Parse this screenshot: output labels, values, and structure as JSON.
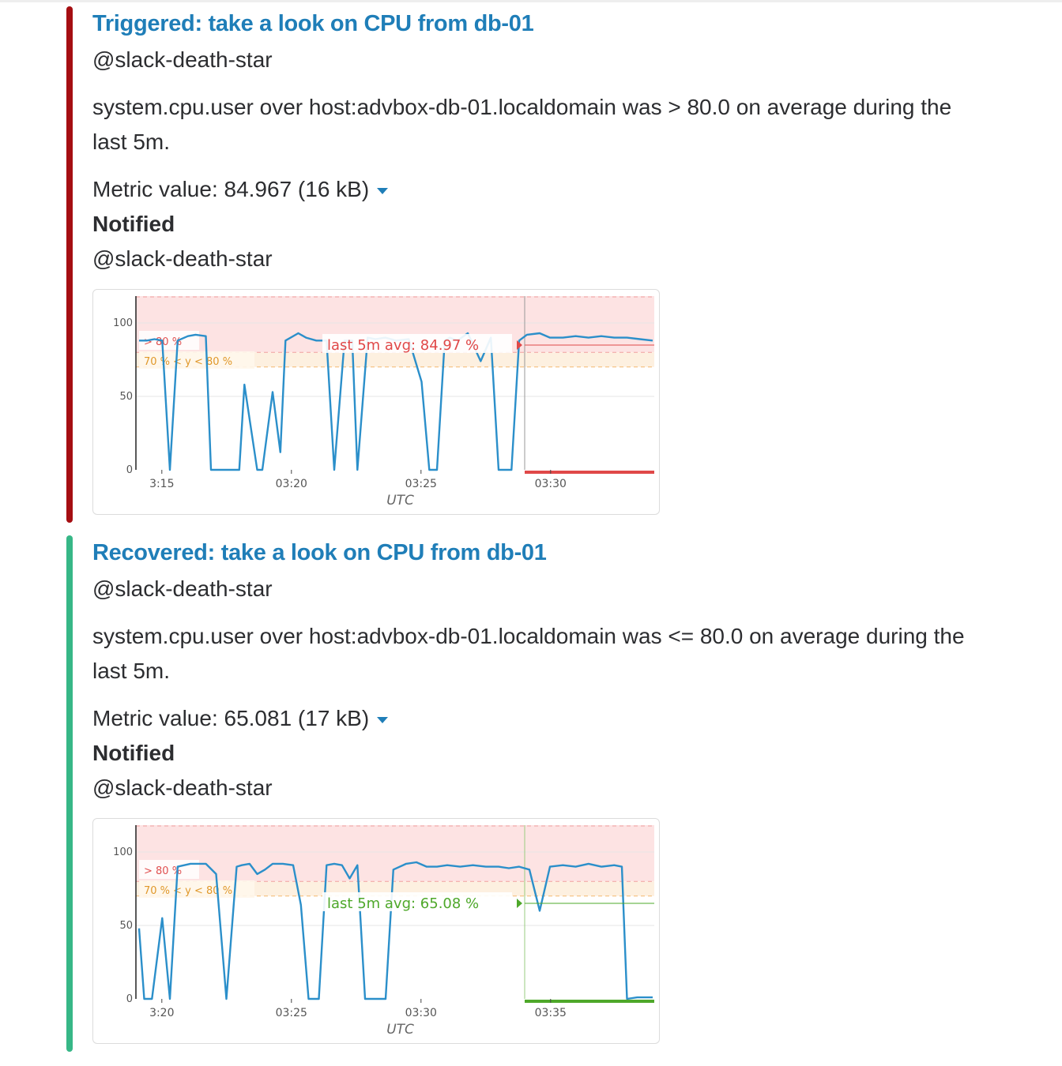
{
  "alerts": [
    {
      "status": "triggered",
      "accent_color": "#a50e12",
      "title": "Triggered: take a look on CPU from db-01",
      "mention": "@slack-death-star",
      "description": "system.cpu.user over host:advbox-db-01.localdomain was > 80.0 on average during the last 5m.",
      "metric_label": "Metric value: 84.967 (16 kB)",
      "notified_label": "Notified",
      "notified_target": "@slack-death-star",
      "chart_data": {
        "type": "line",
        "title": "",
        "xlabel": "UTC",
        "ylabel": "",
        "ylim": [
          0,
          100
        ],
        "yticks": [
          0,
          50,
          100
        ],
        "x_tick_labels": [
          "3:15",
          "03:20",
          "03:25",
          "03:30"
        ],
        "thresholds": [
          {
            "label": "> 80 %",
            "color": "#f0a0a0",
            "from": 80,
            "to": 100
          },
          {
            "label": "70 % < y < 80 %",
            "color": "#f4b870",
            "from": 70,
            "to": 80
          }
        ],
        "avg_label": "last 5m avg: 84.97 %",
        "avg_value": 84.97,
        "avg_color": "#e04848",
        "series_color": "#2b8fca",
        "x": [
          0,
          0.3,
          0.6,
          0.9,
          1.2,
          1.5,
          1.9,
          2.2,
          2.6,
          2.8,
          3.0,
          3.5,
          3.9,
          4.1,
          4.6,
          4.8,
          5.2,
          5.5,
          5.7,
          6.2,
          6.5,
          6.9,
          7.3,
          7.6,
          8.0,
          8.3,
          8.5,
          8.9,
          9.2,
          9.6,
          10.0,
          10.5,
          11.0,
          11.3,
          11.6,
          11.9,
          12.1,
          12.4,
          12.8,
          13.3,
          13.7,
          14.0,
          14.3,
          14.5,
          14.8,
          15.1,
          15.6,
          16.0,
          16.5,
          17.0,
          17.5,
          18.0,
          18.5,
          19.0,
          19.5,
          20.0
        ],
        "values": [
          88,
          88,
          89,
          88,
          0,
          88,
          91,
          92,
          91,
          0,
          0,
          0,
          0,
          58,
          0,
          0,
          53,
          12,
          88,
          93,
          90,
          88,
          88,
          0,
          88,
          88,
          0,
          90,
          89,
          90,
          88,
          89,
          60,
          0,
          0,
          88,
          90,
          88,
          93,
          74,
          90,
          0,
          0,
          0,
          88,
          92,
          93,
          90,
          90,
          91,
          90,
          91,
          90,
          90,
          89,
          88
        ]
      }
    },
    {
      "status": "recovered",
      "accent_color": "#37b787",
      "title": "Recovered: take a look on CPU from db-01",
      "mention": "@slack-death-star",
      "description": "system.cpu.user over host:advbox-db-01.localdomain was <= 80.0 on average during the last 5m.",
      "metric_label": "Metric value: 65.081 (17 kB)",
      "notified_label": "Notified",
      "notified_target": "@slack-death-star",
      "chart_data": {
        "type": "line",
        "title": "",
        "xlabel": "UTC",
        "ylabel": "",
        "ylim": [
          0,
          100
        ],
        "yticks": [
          0,
          50,
          100
        ],
        "x_tick_labels": [
          "3:20",
          "03:25",
          "03:30",
          "03:35"
        ],
        "thresholds": [
          {
            "label": "> 80 %",
            "color": "#f0a0a0",
            "from": 80,
            "to": 100
          },
          {
            "label": "70 % < y < 80 %",
            "color": "#f4b870",
            "from": 70,
            "to": 80
          }
        ],
        "avg_label": "last 5m avg: 65.08 %",
        "avg_value": 65.08,
        "avg_color": "#4ea82a",
        "series_color": "#2b8fca",
        "x": [
          0,
          0.2,
          0.5,
          0.9,
          1.2,
          1.5,
          2.0,
          2.3,
          2.6,
          3.0,
          3.4,
          3.8,
          4.0,
          4.3,
          4.6,
          4.9,
          5.2,
          5.6,
          6.0,
          6.3,
          6.6,
          7.0,
          7.3,
          7.6,
          7.9,
          8.2,
          8.5,
          8.8,
          9.2,
          9.6,
          9.9,
          10.4,
          10.8,
          11.2,
          11.6,
          12.0,
          12.5,
          13.0,
          13.5,
          14.0,
          14.4,
          14.8,
          15.2,
          15.6,
          16.0,
          16.5,
          17.0,
          17.5,
          18.0,
          18.5,
          18.8,
          19.0,
          19.4,
          20.0
        ],
        "values": [
          48,
          0,
          0,
          55,
          0,
          90,
          92,
          92,
          92,
          85,
          0,
          90,
          91,
          92,
          85,
          88,
          92,
          92,
          91,
          64,
          0,
          0,
          91,
          92,
          91,
          82,
          91,
          0,
          0,
          0,
          88,
          92,
          93,
          90,
          90,
          91,
          90,
          91,
          90,
          90,
          89,
          90,
          88,
          60,
          90,
          91,
          90,
          92,
          90,
          91,
          90,
          0,
          1,
          1
        ]
      }
    }
  ]
}
